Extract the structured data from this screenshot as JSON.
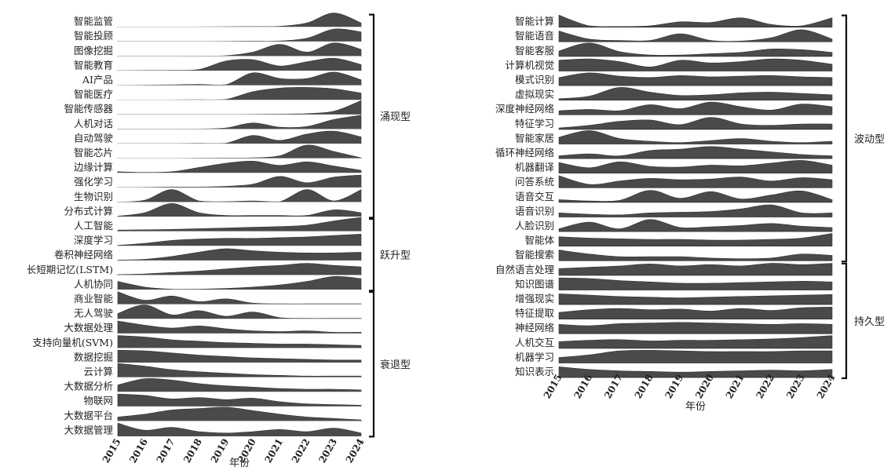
{
  "chart_data": [
    {
      "type": "area",
      "xlabel": "年份",
      "x": [
        2015,
        2016,
        2017,
        2018,
        2019,
        2020,
        2021,
        2022,
        2023,
        2024
      ],
      "series": [
        {
          "name": "智能监管",
          "values": [
            0.02,
            0.02,
            0.02,
            0.02,
            0.03,
            0.04,
            0.06,
            0.3,
            1.0,
            0.3
          ]
        },
        {
          "name": "智能投顾",
          "values": [
            0.02,
            0.02,
            0.02,
            0.02,
            0.03,
            0.04,
            0.06,
            0.25,
            0.9,
            0.7
          ]
        },
        {
          "name": "图像挖掘",
          "values": [
            0.02,
            0.02,
            0.02,
            0.03,
            0.05,
            0.3,
            0.85,
            0.3,
            0.95,
            0.5
          ]
        },
        {
          "name": "智能教育",
          "values": [
            0.02,
            0.03,
            0.04,
            0.1,
            0.7,
            0.8,
            0.35,
            0.65,
            0.9,
            0.45
          ]
        },
        {
          "name": "AI产品",
          "values": [
            0.02,
            0.03,
            0.05,
            0.08,
            0.06,
            0.9,
            0.5,
            0.5,
            0.95,
            0.4
          ]
        },
        {
          "name": "智能医疗",
          "values": [
            0.02,
            0.02,
            0.02,
            0.03,
            0.05,
            0.6,
            0.85,
            0.9,
            0.8,
            0.5
          ]
        },
        {
          "name": "智能传感器",
          "values": [
            0.02,
            0.02,
            0.02,
            0.02,
            0.02,
            0.03,
            0.04,
            0.08,
            0.25,
            1.0
          ]
        },
        {
          "name": "人机对话",
          "values": [
            0.02,
            0.02,
            0.02,
            0.03,
            0.1,
            0.45,
            0.15,
            0.2,
            0.7,
            1.0
          ]
        },
        {
          "name": "自动驾驶",
          "values": [
            0.02,
            0.02,
            0.02,
            0.03,
            0.05,
            0.6,
            0.25,
            0.7,
            0.9,
            0.5
          ]
        },
        {
          "name": "智能芯片",
          "values": [
            0.02,
            0.02,
            0.02,
            0.03,
            0.04,
            0.05,
            0.2,
            0.95,
            0.5,
            0.05
          ]
        },
        {
          "name": "边缘计算",
          "values": [
            0.1,
            0.05,
            0.1,
            0.4,
            0.7,
            0.85,
            0.55,
            0.8,
            0.5,
            0.2
          ]
        },
        {
          "name": "强化学习",
          "values": [
            0.02,
            0.03,
            0.05,
            0.05,
            0.1,
            0.25,
            0.8,
            0.35,
            0.75,
            0.9
          ]
        },
        {
          "name": "生物识别",
          "values": [
            0.02,
            0.15,
            0.9,
            0.1,
            0.05,
            0.1,
            0.05,
            0.9,
            0.1,
            0.9
          ]
        },
        {
          "name": "分布式计算",
          "values": [
            0.05,
            0.3,
            0.95,
            0.3,
            0.1,
            0.1,
            0.1,
            0.1,
            0.5,
            0.3
          ]
        },
        {
          "name": "人工智能",
          "values": [
            0.1,
            0.12,
            0.15,
            0.2,
            0.25,
            0.3,
            0.35,
            0.45,
            0.75,
            1.0
          ]
        },
        {
          "name": "深度学习",
          "values": [
            0.05,
            0.2,
            0.4,
            0.5,
            0.55,
            0.55,
            0.6,
            0.65,
            0.75,
            0.85
          ]
        },
        {
          "name": "卷积神经网络",
          "values": [
            0.05,
            0.1,
            0.3,
            0.6,
            0.85,
            0.7,
            0.6,
            0.55,
            0.55,
            0.6
          ]
        },
        {
          "name": "长短期记忆(LSTM)",
          "values": [
            0.05,
            0.1,
            0.2,
            0.3,
            0.45,
            0.6,
            0.7,
            0.85,
            0.7,
            0.6
          ]
        },
        {
          "name": "人机协同",
          "values": [
            0.6,
            0.2,
            0.05,
            0.05,
            0.1,
            0.2,
            0.35,
            0.6,
            0.95,
            0.8
          ]
        },
        {
          "name": "商业智能",
          "values": [
            0.9,
            0.3,
            0.6,
            0.2,
            0.4,
            0.1,
            0.05,
            0.05,
            0.05,
            0.05
          ]
        },
        {
          "name": "无人驾驶",
          "values": [
            0.4,
            1.0,
            0.3,
            0.6,
            0.2,
            0.5,
            0.1,
            0.05,
            0.05,
            0.05
          ]
        },
        {
          "name": "大数据处理",
          "values": [
            0.9,
            0.6,
            0.4,
            0.55,
            0.35,
            0.2,
            0.15,
            0.2,
            0.1,
            0.1
          ]
        },
        {
          "name": "支持向量机(SVM)",
          "values": [
            0.9,
            0.8,
            0.6,
            0.5,
            0.4,
            0.35,
            0.3,
            0.3,
            0.25,
            0.2
          ]
        },
        {
          "name": "数据挖掘",
          "values": [
            0.9,
            0.85,
            0.7,
            0.55,
            0.45,
            0.35,
            0.3,
            0.25,
            0.2,
            0.2
          ]
        },
        {
          "name": "云计算",
          "values": [
            1.0,
            0.8,
            0.55,
            0.4,
            0.3,
            0.2,
            0.15,
            0.1,
            0.1,
            0.1
          ]
        },
        {
          "name": "大数据分析",
          "values": [
            0.5,
            0.95,
            0.85,
            0.6,
            0.45,
            0.35,
            0.25,
            0.2,
            0.2,
            0.15
          ]
        },
        {
          "name": "物联网",
          "values": [
            0.9,
            0.8,
            0.55,
            0.65,
            0.5,
            0.6,
            0.35,
            0.2,
            0.15,
            0.1
          ]
        },
        {
          "name": "大数据平台",
          "values": [
            0.3,
            0.5,
            0.8,
            0.9,
            1.0,
            0.75,
            0.5,
            0.3,
            0.2,
            0.1
          ]
        },
        {
          "name": "大数据管理",
          "values": [
            0.9,
            0.4,
            0.6,
            0.3,
            0.2,
            0.3,
            0.45,
            0.3,
            0.55,
            0.2
          ]
        }
      ],
      "groups": [
        {
          "label": "涌现型",
          "start": "智能监管",
          "end": "分布式计算"
        },
        {
          "label": "跃升型",
          "start": "人工智能",
          "end": "人机协同"
        },
        {
          "label": "衰退型",
          "start": "商业智能",
          "end": "大数据管理"
        }
      ]
    },
    {
      "type": "area",
      "xlabel": "年份",
      "x": [
        2015,
        2016,
        2017,
        2018,
        2019,
        2020,
        2021,
        2022,
        2023,
        2024
      ],
      "series": [
        {
          "name": "智能计算",
          "values": [
            0.9,
            0.1,
            0.05,
            0.1,
            0.4,
            0.35,
            0.7,
            0.2,
            0.1,
            0.7
          ]
        },
        {
          "name": "智能语音",
          "values": [
            0.8,
            0.2,
            0.1,
            0.1,
            0.6,
            0.1,
            0.05,
            0.3,
            0.9,
            0.2
          ]
        },
        {
          "name": "智能客服",
          "values": [
            0.4,
            1.0,
            0.35,
            0.1,
            0.1,
            0.2,
            0.3,
            0.55,
            0.5,
            0.3
          ]
        },
        {
          "name": "计算机视觉",
          "values": [
            0.8,
            0.9,
            0.7,
            0.3,
            0.8,
            0.6,
            0.7,
            0.9,
            0.8,
            0.5
          ]
        },
        {
          "name": "模式识别",
          "values": [
            0.6,
            0.95,
            0.7,
            0.6,
            0.75,
            0.65,
            0.7,
            0.75,
            0.65,
            0.6
          ]
        },
        {
          "name": "虚拟现实",
          "values": [
            0.1,
            0.3,
            0.95,
            0.6,
            0.35,
            0.4,
            0.55,
            0.6,
            0.5,
            0.4
          ]
        },
        {
          "name": "深度神经网络",
          "values": [
            0.3,
            0.4,
            0.3,
            0.75,
            0.45,
            0.95,
            0.6,
            0.35,
            0.8,
            0.6
          ]
        },
        {
          "name": "特征学习",
          "values": [
            0.1,
            0.3,
            0.6,
            0.7,
            0.35,
            0.9,
            0.4,
            0.3,
            0.4,
            0.4
          ]
        },
        {
          "name": "智能家居",
          "values": [
            0.5,
            1.0,
            0.4,
            0.2,
            0.1,
            0.25,
            0.4,
            0.2,
            0.1,
            0.2
          ]
        },
        {
          "name": "循环神经网络",
          "values": [
            0.2,
            0.35,
            0.2,
            0.6,
            0.7,
            0.9,
            0.7,
            0.5,
            0.3,
            0.2
          ]
        },
        {
          "name": "机器翻译",
          "values": [
            0.8,
            0.4,
            0.85,
            0.5,
            0.45,
            0.6,
            0.55,
            0.75,
            0.95,
            0.6
          ]
        },
        {
          "name": "问答系统",
          "values": [
            0.9,
            0.25,
            0.5,
            0.7,
            0.6,
            0.65,
            0.8,
            0.5,
            0.75,
            0.6
          ]
        },
        {
          "name": "语音交互",
          "values": [
            0.2,
            0.1,
            0.15,
            0.9,
            0.3,
            0.8,
            0.25,
            0.55,
            0.85,
            0.2
          ]
        },
        {
          "name": "语音识别",
          "values": [
            0.3,
            0.2,
            0.15,
            0.3,
            0.35,
            0.4,
            0.6,
            0.9,
            0.3,
            0.3
          ]
        },
        {
          "name": "人脸识别",
          "values": [
            0.2,
            0.7,
            0.2,
            0.9,
            0.3,
            0.35,
            0.45,
            0.6,
            0.4,
            0.3
          ]
        },
        {
          "name": "智能体",
          "values": [
            0.7,
            0.6,
            0.55,
            0.5,
            0.5,
            0.45,
            0.45,
            0.5,
            0.6,
            0.95
          ]
        },
        {
          "name": "智能搜索",
          "values": [
            0.8,
            0.5,
            0.3,
            0.3,
            0.3,
            0.2,
            0.15,
            0.2,
            0.5,
            0.4
          ]
        },
        {
          "name": "自然语言处理",
          "values": [
            0.5,
            0.6,
            0.7,
            0.85,
            0.7,
            0.8,
            0.7,
            0.9,
            0.8,
            0.9
          ]
        },
        {
          "name": "知识图谱",
          "values": [
            0.9,
            0.85,
            0.7,
            0.6,
            0.5,
            0.5,
            0.55,
            0.6,
            0.65,
            0.6
          ]
        },
        {
          "name": "增强现实",
          "values": [
            0.8,
            0.7,
            0.6,
            0.55,
            0.5,
            0.55,
            0.6,
            0.65,
            0.7,
            0.75
          ]
        },
        {
          "name": "特征提取",
          "values": [
            0.5,
            0.7,
            0.8,
            0.7,
            0.75,
            0.6,
            0.8,
            0.65,
            0.85,
            0.9
          ]
        },
        {
          "name": "神经网络",
          "values": [
            0.7,
            0.6,
            0.75,
            0.8,
            0.85,
            0.8,
            0.75,
            0.7,
            0.75,
            0.7
          ]
        },
        {
          "name": "人机交互",
          "values": [
            0.5,
            0.6,
            0.65,
            0.55,
            0.6,
            0.6,
            0.65,
            0.7,
            0.8,
            0.95
          ]
        },
        {
          "name": "机器学习",
          "values": [
            0.4,
            0.6,
            0.9,
            0.95,
            0.9,
            0.85,
            0.85,
            0.85,
            0.9,
            0.9
          ]
        },
        {
          "name": "知识表示",
          "values": [
            0.8,
            0.6,
            0.5,
            0.45,
            0.4,
            0.45,
            0.5,
            0.55,
            0.5,
            0.6
          ]
        }
      ],
      "groups": [
        {
          "label": "波动型",
          "start": "智能计算",
          "end": "智能搜索"
        },
        {
          "label": "持久型",
          "start": "自然语言处理",
          "end": "知识表示"
        }
      ]
    }
  ]
}
